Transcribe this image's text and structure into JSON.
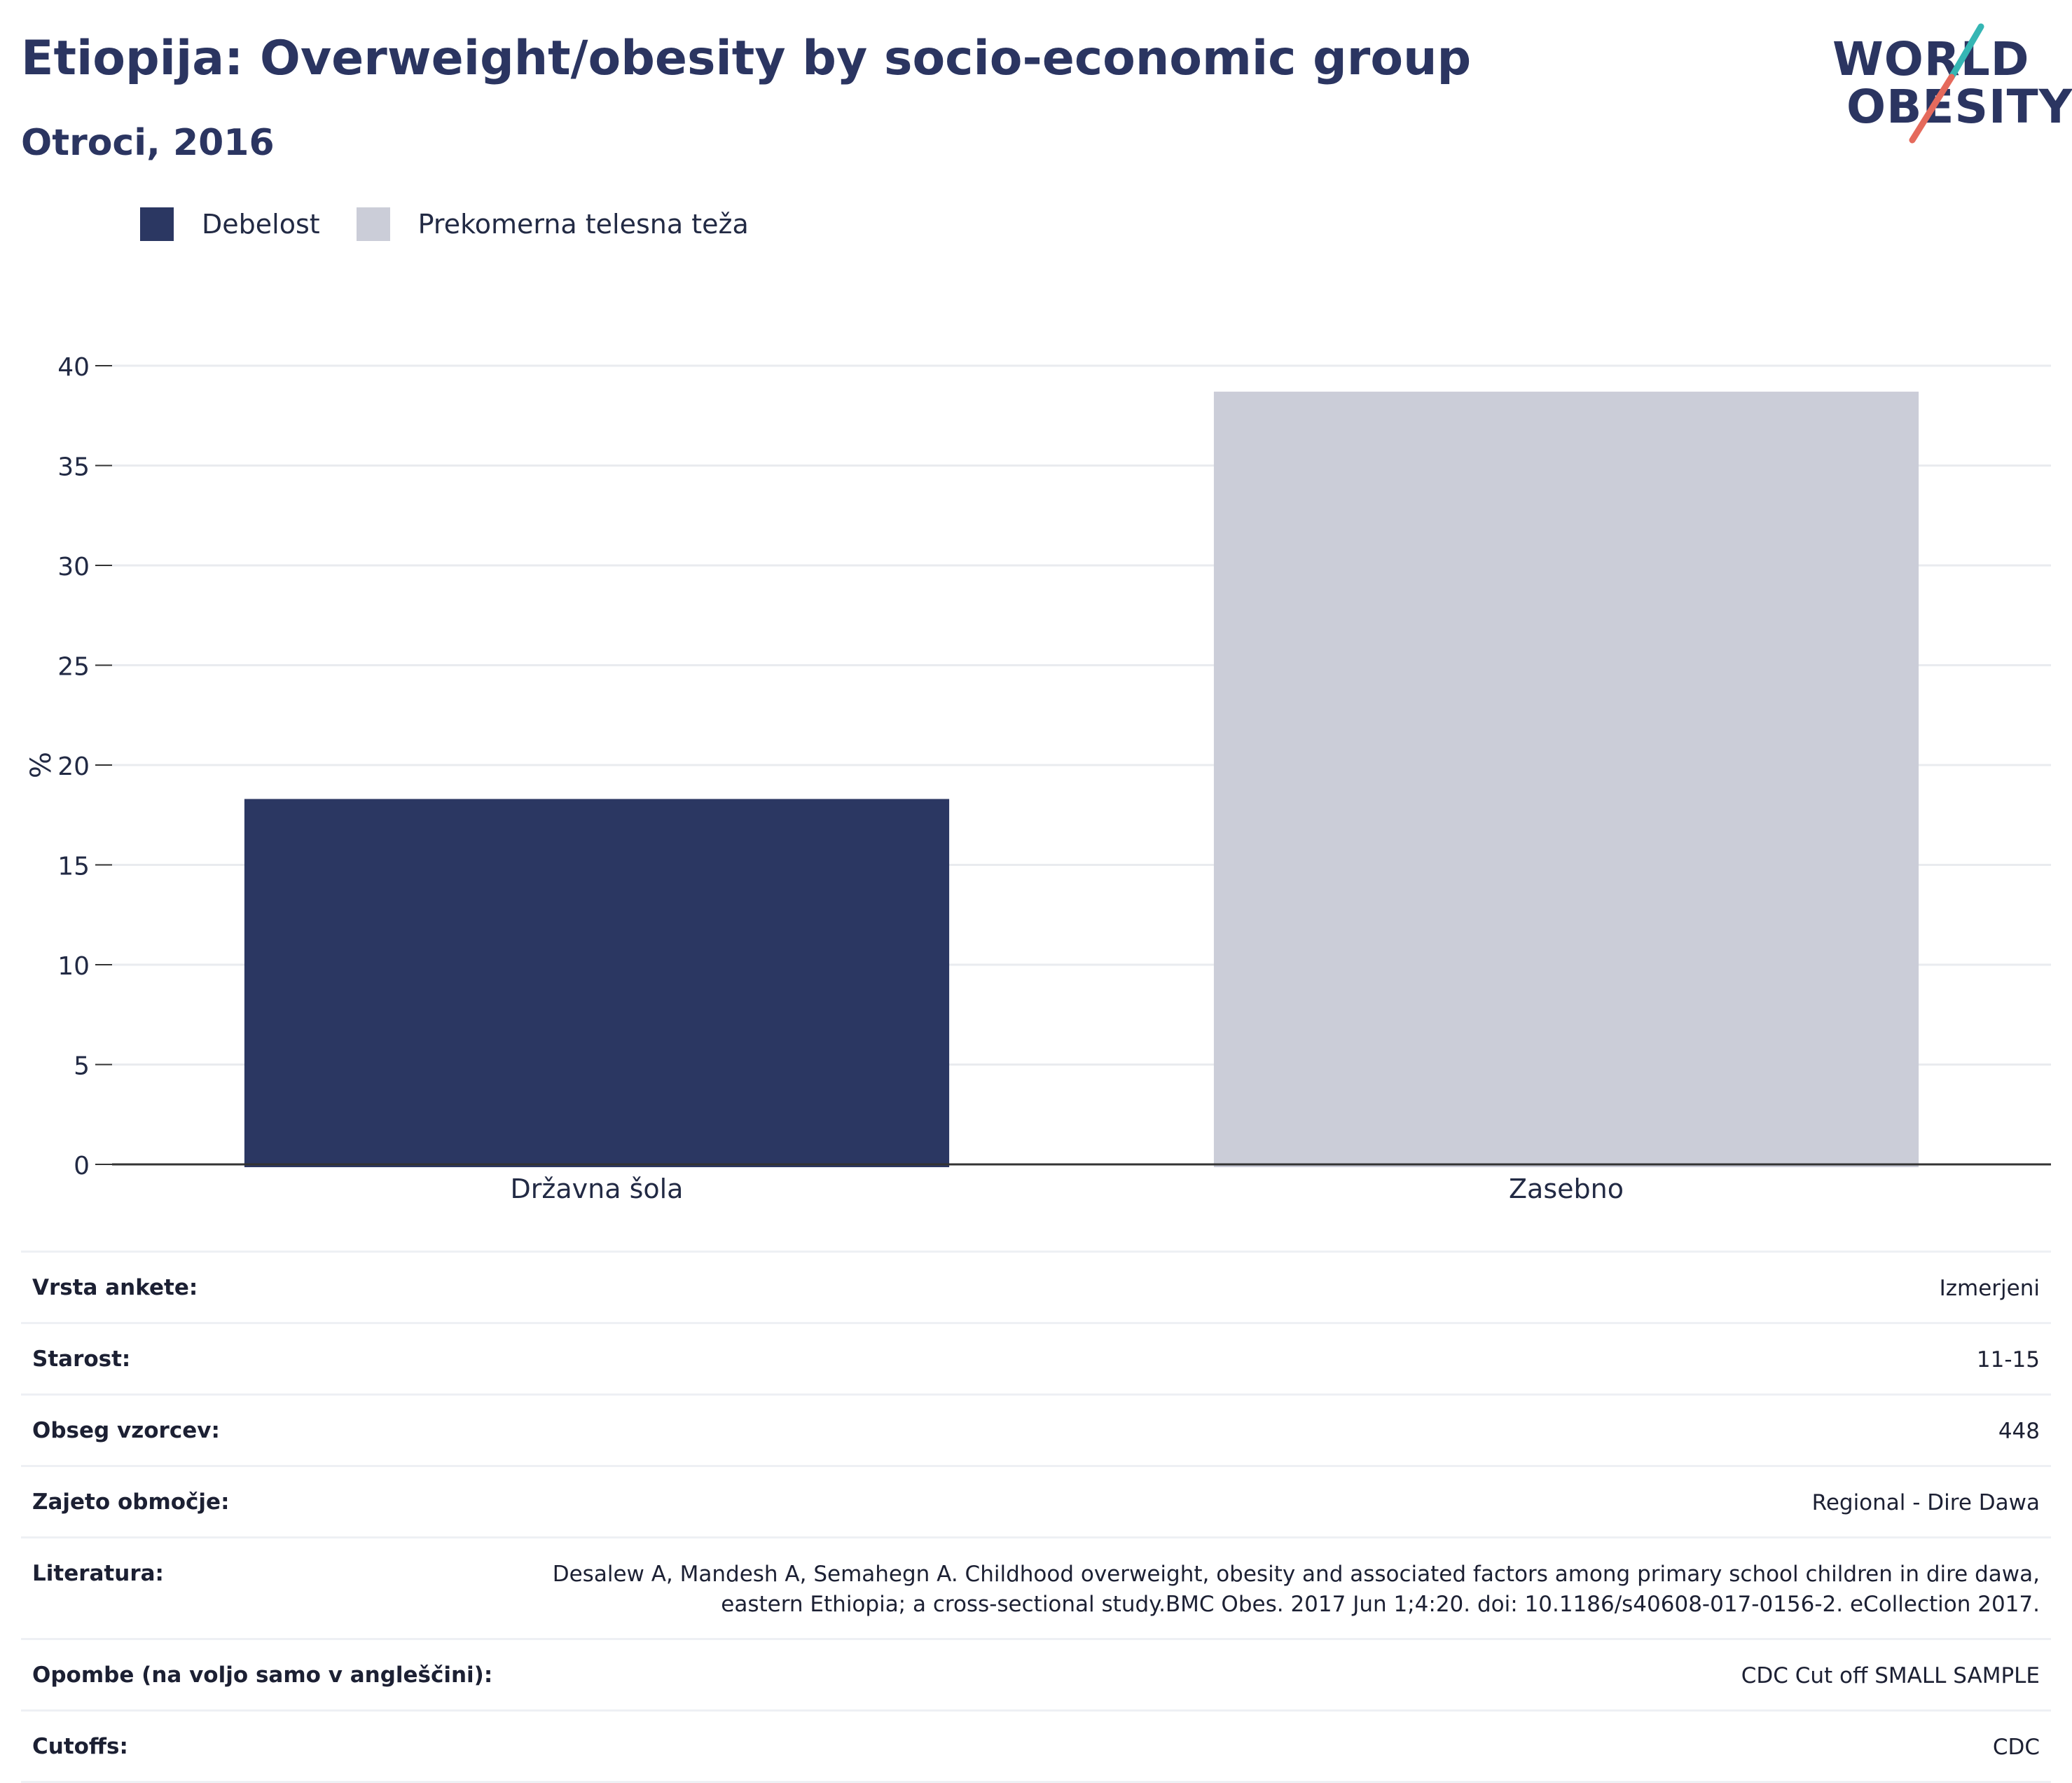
{
  "header": {
    "title": "Etiopija: Overweight/obesity by socio-economic group",
    "subtitle": "Otroci, 2016"
  },
  "logo": {
    "line1": "WORLD",
    "line2": "OBESITY"
  },
  "colors": {
    "obesity": "#2b3762",
    "overweight": "#cbcdd8",
    "text": "#2b3561",
    "grid": "#e9ebef",
    "axis": "#333333"
  },
  "legend": [
    {
      "label": "Debelost",
      "color": "#2b3762"
    },
    {
      "label": "Prekomerna telesna teža",
      "color": "#cbcdd8"
    }
  ],
  "chart_data": {
    "type": "bar",
    "categories": [
      "Državna šola",
      "Zasebno"
    ],
    "series": [
      {
        "name": "Debelost",
        "values": [
          18.3,
          null
        ]
      },
      {
        "name": "Prekomerna telesna teža",
        "values": [
          null,
          38.7
        ]
      }
    ],
    "ylabel": "%",
    "xlabel": "",
    "ylim": [
      0,
      40
    ],
    "yticks": [
      0,
      5,
      10,
      15,
      20,
      25,
      30,
      35,
      40
    ],
    "grid": true,
    "legend_position": "top-left"
  },
  "info": [
    {
      "key": "Vrsta ankete:",
      "value": "Izmerjeni"
    },
    {
      "key": "Starost:",
      "value": "11-15"
    },
    {
      "key": "Obseg vzorcev:",
      "value": "448"
    },
    {
      "key": "Zajeto območje:",
      "value": "Regional - Dire Dawa"
    },
    {
      "key": "Literatura:",
      "value": "Desalew A, Mandesh A, Semahegn A. Childhood overweight, obesity and associated factors among primary school children in dire dawa, eastern Ethiopia; a cross-sectional study.BMC Obes. 2017 Jun 1;4:20. doi: 10.1186/s40608-017-0156-2. eCollection 2017."
    },
    {
      "key": "Opombe (na voljo samo v angleščini):",
      "value": "CDC Cut off SMALL SAMPLE"
    },
    {
      "key": "Cutoffs:",
      "value": "CDC"
    }
  ]
}
